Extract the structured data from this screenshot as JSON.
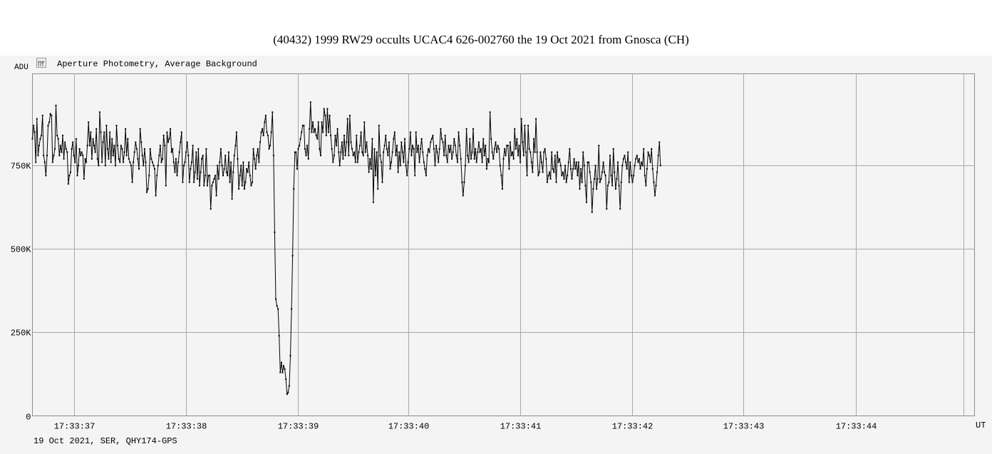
{
  "chart_data": {
    "type": "line",
    "title": "(40432) 1999 RW29 occults UCAC4 626-002760 the 19 Oct 2021 from Gnosca (CH)",
    "subtitle": "Aperture Photometry, Average Background",
    "ylabel": "ADU",
    "xlabel": "UT",
    "footer": "19 Oct 2021, SER, QHY174-GPS",
    "ylim": [
      0,
      1025000
    ],
    "xlim": [
      0,
      8.4
    ],
    "grid": true,
    "x_tick_labels": [
      "17:33:37",
      "17:33:38",
      "17:33:39",
      "17:33:40",
      "17:33:41",
      "17:33:42",
      "17:33:43",
      "17:33:44"
    ],
    "x_tick_positions": [
      0.37,
      1.37,
      2.37,
      3.35,
      4.35,
      5.35,
      6.34,
      7.34
    ],
    "y_tick_values": [
      0,
      250000,
      500000,
      750000
    ],
    "y_tick_labels": [
      "0",
      "250K",
      "500K",
      "750K"
    ],
    "sample_interval_s": 0.01,
    "series": [
      {
        "color": "#000000",
        "values": [
          830,
          870,
          850,
          760,
          890,
          780,
          810,
          830,
          840,
          900,
          780,
          760,
          720,
          780,
          870,
          880,
          905,
          900,
          760,
          780,
          800,
          930,
          840,
          830,
          780,
          810,
          790,
          840,
          770,
          820,
          800,
          790,
          695,
          720,
          730,
          800,
          820,
          780,
          760,
          830,
          720,
          750,
          800,
          780,
          790,
          780,
          710,
          770,
          760,
          810,
          880,
          810,
          850,
          770,
          830,
          810,
          790,
          860,
          770,
          750,
          910,
          850,
          760,
          820,
          850,
          750,
          870,
          800,
          770,
          850,
          760,
          830,
          780,
          810,
          750,
          870,
          810,
          770,
          760,
          810,
          800,
          760,
          790,
          860,
          780,
          830,
          770,
          760,
          750,
          700,
          760,
          790,
          820,
          800,
          770,
          740,
          860,
          820,
          780,
          750,
          800,
          760,
          670,
          680,
          720,
          800,
          770,
          760,
          750,
          740,
          660,
          720,
          750,
          780,
          810,
          760,
          770,
          840,
          810,
          690,
          850,
          820,
          830,
          860,
          790,
          800,
          760,
          730,
          770,
          720,
          760,
          790,
          820,
          850,
          700,
          750,
          760,
          790,
          820,
          780,
          700,
          740,
          760,
          810,
          700,
          730,
          790,
          710,
          800,
          690,
          730,
          770,
          780,
          690,
          720,
          800,
          690,
          720,
          720,
          620,
          690,
          700,
          710,
          720,
          660,
          750,
          710,
          760,
          800,
          750,
          720,
          740,
          780,
          730,
          720,
          790,
          700,
          760,
          650,
          730,
          780,
          810,
          850,
          770,
          680,
          720,
          750,
          690,
          760,
          680,
          700,
          740,
          730,
          760,
          720,
          690,
          700,
          800,
          770,
          740,
          780,
          800,
          760,
          820,
          850,
          860,
          840,
          880,
          900,
          850,
          840,
          800,
          810,
          850,
          910,
          780,
          550,
          350,
          330,
          320,
          240,
          130,
          160,
          130,
          150,
          140,
          110,
          65,
          70,
          90,
          180,
          320,
          480,
          680,
          790,
          790,
          740,
          800,
          810,
          830,
          850,
          870,
          870,
          800,
          780,
          810,
          770,
          860,
          940,
          850,
          880,
          850,
          860,
          840,
          830,
          880,
          800,
          780,
          880,
          850,
          920,
          900,
          840,
          920,
          850,
          900,
          840,
          800,
          760,
          780,
          840,
          810,
          860,
          790,
          750,
          790,
          820,
          770,
          840,
          780,
          820,
          890,
          780,
          900,
          820,
          800,
          780,
          790,
          760,
          840,
          760,
          790,
          810,
          850,
          790,
          780,
          880,
          790,
          820,
          780,
          730,
          770,
          740,
          830,
          640,
          800,
          720,
          790,
          680,
          870,
          780,
          760,
          700,
          790,
          810,
          840,
          800,
          780,
          820,
          740,
          760,
          790,
          830,
          850,
          780,
          810,
          730,
          790,
          750,
          820,
          790,
          760,
          830,
          750,
          720,
          760,
          800,
          850,
          780,
          810,
          800,
          720,
          850,
          790,
          810,
          760,
          800,
          830,
          790,
          760,
          740,
          720,
          780,
          800,
          790,
          820,
          830,
          840,
          800,
          750,
          810,
          790,
          760,
          800,
          860,
          830,
          820,
          780,
          840,
          780,
          760,
          810,
          790,
          810,
          770,
          790,
          830,
          810,
          780,
          760,
          850,
          810,
          770,
          700,
          660,
          700,
          750,
          860,
          780,
          760,
          830,
          770,
          790,
          860,
          770,
          800,
          760,
          790,
          820,
          790,
          800,
          760,
          830,
          780,
          810,
          740,
          770,
          760,
          910,
          830,
          790,
          770,
          800,
          820,
          790,
          810,
          800,
          750,
          720,
          680,
          770,
          800,
          780,
          810,
          810,
          740,
          820,
          780,
          790,
          770,
          860,
          800,
          830,
          780,
          810,
          760,
          890,
          820,
          780,
          870,
          790,
          720,
          870,
          800,
          790,
          760,
          730,
          830,
          790,
          890,
          790,
          720,
          730,
          790,
          760,
          730,
          790,
          800,
          770,
          700,
          720,
          730,
          710,
          790,
          740,
          730,
          780,
          700,
          790,
          760,
          770,
          750,
          720,
          730,
          710,
          750,
          700,
          720,
          760,
          800,
          740,
          710,
          740,
          770,
          740,
          760,
          720,
          760,
          680,
          740,
          700,
          790,
          750,
          690,
          640,
          760,
          760,
          730,
          700,
          610,
          680,
          710,
          750,
          680,
          710,
          810,
          700,
          710,
          730,
          760,
          730,
          720,
          620,
          690,
          700,
          780,
          720,
          690,
          800,
          730,
          680,
          710,
          760,
          690,
          620,
          700,
          750,
          770,
          780,
          760,
          740,
          790,
          700,
          760,
          720,
          700,
          720,
          750,
          770,
          780,
          760,
          770,
          740,
          760,
          750,
          800,
          720,
          690,
          740,
          790,
          780,
          760,
          800,
          740,
          700,
          660,
          690,
          730,
          780,
          820,
          750
        ]
      }
    ]
  }
}
